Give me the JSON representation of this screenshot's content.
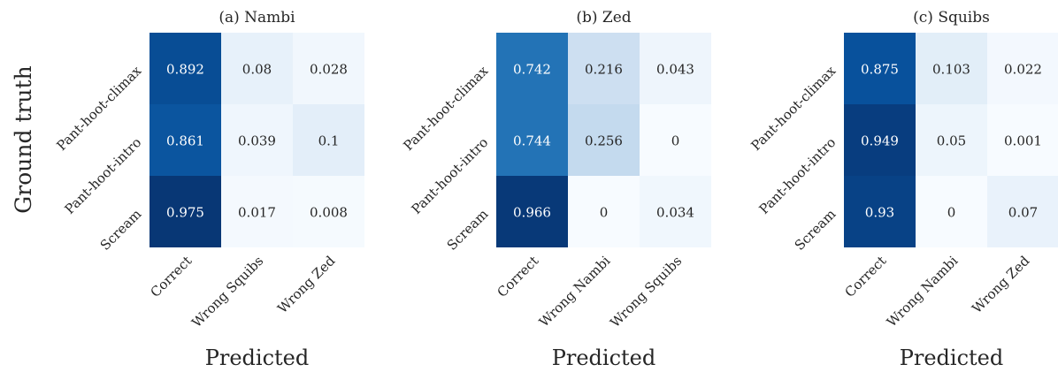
{
  "figure": {
    "ylabel": "Ground truth"
  },
  "chart_data": [
    {
      "type": "heatmap",
      "title": "(a) Nambi",
      "xlabel": "Predicted",
      "rows": [
        "Pant-hoot-climax",
        "Pant-hoot-intro",
        "Scream"
      ],
      "columns": [
        "Correct",
        "Wrong Squibs",
        "Wrong Zed"
      ],
      "values": [
        [
          "0.892",
          "0.08",
          "0.028"
        ],
        [
          "0.861",
          "0.039",
          "0.1"
        ],
        [
          "0.975",
          "0.017",
          "0.008"
        ]
      ],
      "colormap": "Blues",
      "range": [
        0,
        1
      ]
    },
    {
      "type": "heatmap",
      "title": "(b) Zed",
      "xlabel": "Predicted",
      "rows": [
        "Pant-hoot-climax",
        "Pant-hoot-intro",
        "Scream"
      ],
      "columns": [
        "Correct",
        "Wrong Nambi",
        "Wrong Squibs"
      ],
      "values": [
        [
          "0.742",
          "0.216",
          "0.043"
        ],
        [
          "0.744",
          "0.256",
          "0"
        ],
        [
          "0.966",
          "0",
          "0.034"
        ]
      ],
      "colormap": "Blues",
      "range": [
        0,
        1
      ]
    },
    {
      "type": "heatmap",
      "title": "(c) Squibs",
      "xlabel": "Predicted",
      "rows": [
        "Pant-hoot-climax",
        "Pant-hoot-intro",
        "Scream"
      ],
      "columns": [
        "Correct",
        "Wrong Nambi",
        "Wrong Zed"
      ],
      "values": [
        [
          "0.875",
          "0.103",
          "0.022"
        ],
        [
          "0.949",
          "0.05",
          "0.001"
        ],
        [
          "0.93",
          "0",
          "0.07"
        ]
      ],
      "colormap": "Blues",
      "range": [
        0,
        1
      ]
    }
  ]
}
